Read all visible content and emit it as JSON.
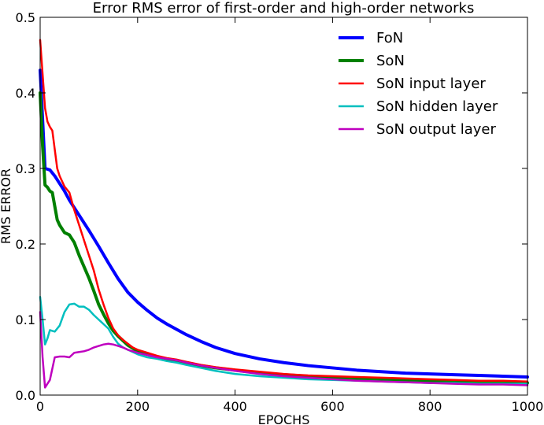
{
  "chart_data": {
    "type": "line",
    "title": "Error RMS error of first-order and high-order networks",
    "xlabel": "EPOCHS",
    "ylabel": "RMS ERROR",
    "xlim": [
      0,
      1000
    ],
    "ylim": [
      0,
      0.5
    ],
    "xticks": [
      0,
      200,
      400,
      600,
      800,
      1000
    ],
    "yticks": [
      0.0,
      0.1,
      0.2,
      0.3,
      0.4,
      0.5
    ],
    "xtick_labels": [
      "0",
      "200",
      "400",
      "600",
      "800",
      "1000"
    ],
    "ytick_labels": [
      "0.0",
      "0.1",
      "0.2",
      "0.3",
      "0.4",
      "0.5"
    ],
    "grid": false,
    "legend_position": "top-right",
    "series": [
      {
        "name": "FoN",
        "color": "#0000ff",
        "width": "thick",
        "x": [
          0,
          10,
          20,
          30,
          40,
          50,
          60,
          70,
          80,
          90,
          100,
          120,
          140,
          160,
          180,
          200,
          220,
          240,
          260,
          280,
          300,
          330,
          360,
          400,
          450,
          500,
          550,
          600,
          650,
          700,
          750,
          800,
          850,
          900,
          950,
          1000
        ],
        "y": [
          0.43,
          0.3,
          0.298,
          0.29,
          0.28,
          0.27,
          0.258,
          0.248,
          0.238,
          0.228,
          0.218,
          0.197,
          0.175,
          0.154,
          0.136,
          0.123,
          0.112,
          0.102,
          0.094,
          0.087,
          0.08,
          0.071,
          0.063,
          0.055,
          0.048,
          0.043,
          0.039,
          0.036,
          0.033,
          0.031,
          0.029,
          0.028,
          0.027,
          0.026,
          0.025,
          0.024
        ]
      },
      {
        "name": "SoN",
        "color": "#008000",
        "width": "thick",
        "x": [
          0,
          5,
          10,
          15,
          20,
          25,
          30,
          35,
          40,
          50,
          60,
          70,
          80,
          90,
          100,
          110,
          120,
          130,
          140,
          150,
          160,
          170,
          180,
          190,
          200,
          220,
          240,
          260,
          280,
          300,
          330,
          360,
          400,
          450,
          500,
          550,
          600,
          650,
          700,
          750,
          800,
          850,
          900,
          950,
          1000
        ],
        "y": [
          0.4,
          0.33,
          0.278,
          0.275,
          0.27,
          0.268,
          0.25,
          0.232,
          0.225,
          0.215,
          0.212,
          0.202,
          0.185,
          0.17,
          0.155,
          0.138,
          0.12,
          0.107,
          0.095,
          0.085,
          0.078,
          0.072,
          0.066,
          0.062,
          0.058,
          0.054,
          0.05,
          0.047,
          0.045,
          0.042,
          0.039,
          0.036,
          0.033,
          0.029,
          0.027,
          0.025,
          0.023,
          0.022,
          0.021,
          0.02,
          0.019,
          0.018,
          0.018,
          0.017,
          0.016
        ]
      },
      {
        "name": "SoN input layer",
        "color": "#ff0000",
        "width": "thin",
        "x": [
          0,
          10,
          15,
          20,
          25,
          30,
          35,
          40,
          50,
          60,
          70,
          80,
          90,
          100,
          110,
          120,
          130,
          140,
          150,
          160,
          170,
          180,
          190,
          200,
          220,
          240,
          260,
          280,
          300,
          330,
          360,
          400,
          450,
          500,
          550,
          600,
          650,
          700,
          750,
          800,
          850,
          900,
          950,
          1000
        ],
        "y": [
          0.47,
          0.38,
          0.362,
          0.355,
          0.35,
          0.325,
          0.3,
          0.29,
          0.276,
          0.268,
          0.245,
          0.225,
          0.205,
          0.185,
          0.165,
          0.14,
          0.12,
          0.102,
          0.088,
          0.079,
          0.073,
          0.068,
          0.063,
          0.06,
          0.056,
          0.052,
          0.049,
          0.047,
          0.044,
          0.04,
          0.037,
          0.034,
          0.031,
          0.028,
          0.026,
          0.025,
          0.024,
          0.023,
          0.022,
          0.021,
          0.02,
          0.019,
          0.019,
          0.018
        ]
      },
      {
        "name": "SoN hidden layer",
        "color": "#00bfbf",
        "width": "thin",
        "x": [
          0,
          5,
          10,
          15,
          20,
          25,
          30,
          40,
          50,
          60,
          70,
          80,
          90,
          100,
          110,
          120,
          130,
          140,
          150,
          160,
          170,
          180,
          190,
          200,
          220,
          240,
          260,
          280,
          300,
          330,
          360,
          400,
          450,
          500,
          550,
          600,
          650,
          700,
          750,
          800,
          850,
          900,
          950,
          1000
        ],
        "y": [
          0.13,
          0.1,
          0.067,
          0.075,
          0.086,
          0.085,
          0.084,
          0.092,
          0.11,
          0.12,
          0.121,
          0.117,
          0.117,
          0.113,
          0.106,
          0.1,
          0.094,
          0.088,
          0.077,
          0.068,
          0.063,
          0.06,
          0.057,
          0.054,
          0.05,
          0.048,
          0.045,
          0.043,
          0.04,
          0.036,
          0.032,
          0.028,
          0.025,
          0.023,
          0.021,
          0.02,
          0.019,
          0.018,
          0.017,
          0.016,
          0.016,
          0.015,
          0.015,
          0.015
        ]
      },
      {
        "name": "SoN output layer",
        "color": "#bf00bf",
        "width": "thin",
        "x": [
          0,
          5,
          10,
          15,
          20,
          25,
          30,
          40,
          50,
          60,
          70,
          80,
          90,
          100,
          110,
          120,
          130,
          140,
          150,
          160,
          170,
          180,
          190,
          200,
          220,
          240,
          260,
          280,
          300,
          330,
          360,
          400,
          450,
          500,
          550,
          600,
          650,
          700,
          750,
          800,
          850,
          900,
          950,
          1000
        ],
        "y": [
          0.11,
          0.05,
          0.01,
          0.015,
          0.02,
          0.035,
          0.05,
          0.051,
          0.051,
          0.05,
          0.056,
          0.057,
          0.058,
          0.06,
          0.063,
          0.065,
          0.067,
          0.068,
          0.067,
          0.065,
          0.063,
          0.06,
          0.058,
          0.056,
          0.053,
          0.05,
          0.048,
          0.046,
          0.043,
          0.039,
          0.036,
          0.032,
          0.028,
          0.025,
          0.023,
          0.021,
          0.019,
          0.018,
          0.017,
          0.016,
          0.015,
          0.014,
          0.014,
          0.013
        ]
      }
    ]
  }
}
